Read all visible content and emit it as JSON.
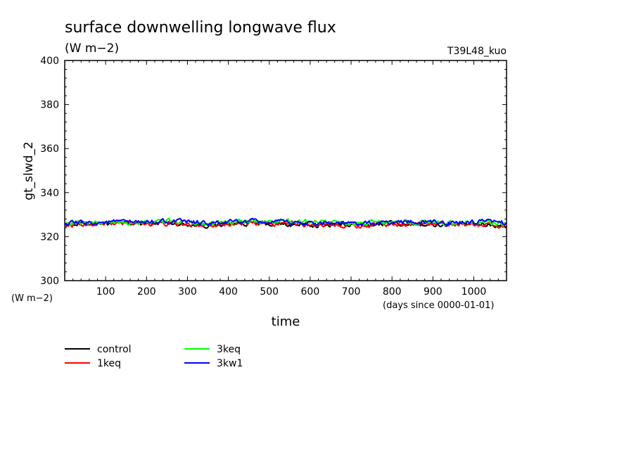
{
  "chart_data": {
    "type": "line",
    "title": "surface downwelling longwave flux",
    "subtitle": "(W m−2)",
    "run_label": "T39L48_kuo",
    "ylabel": "gt_slwd_2",
    "y_unit": "(W m−2)",
    "xlabel": "time",
    "x_unit": "(days since 0000-01-01)",
    "xlim": [
      0,
      1080
    ],
    "ylim": [
      300,
      400
    ],
    "x_ticks": [
      100,
      200,
      300,
      400,
      500,
      600,
      700,
      800,
      900,
      1000
    ],
    "y_ticks": [
      300,
      320,
      340,
      360,
      380,
      400
    ],
    "grid": false,
    "legend_position": "bottom-left",
    "series": [
      {
        "name": "control",
        "color": "#000000",
        "x": [
          0,
          60,
          120,
          180,
          240,
          300,
          360,
          420,
          480,
          540,
          600,
          660,
          720,
          780,
          840,
          900,
          960,
          1020,
          1080
        ],
        "y": [
          325.5,
          326.0,
          326.2,
          325.8,
          326.4,
          325.6,
          325.2,
          326.3,
          325.8,
          325.5,
          325.0,
          325.6,
          325.2,
          325.8,
          326.0,
          325.5,
          325.4,
          325.6,
          325.0
        ]
      },
      {
        "name": "1keq",
        "color": "#ff0000",
        "x": [
          0,
          60,
          120,
          180,
          240,
          300,
          360,
          420,
          480,
          540,
          600,
          660,
          720,
          780,
          840,
          900,
          960,
          1020,
          1080
        ],
        "y": [
          325.2,
          325.8,
          325.9,
          326.1,
          326.0,
          325.4,
          325.6,
          325.9,
          325.6,
          326.0,
          325.4,
          325.7,
          324.8,
          325.6,
          326.0,
          325.7,
          325.8,
          325.6,
          324.8
        ]
      },
      {
        "name": "3keq",
        "color": "#00ff00",
        "x": [
          0,
          60,
          120,
          180,
          240,
          300,
          360,
          420,
          480,
          540,
          600,
          660,
          720,
          780,
          840,
          900,
          960,
          1020,
          1080
        ],
        "y": [
          326.0,
          326.5,
          326.3,
          326.8,
          326.9,
          326.5,
          326.1,
          326.7,
          326.6,
          326.9,
          326.8,
          326.6,
          326.0,
          326.3,
          326.6,
          326.4,
          326.5,
          326.2,
          325.6
        ]
      },
      {
        "name": "3kw1",
        "color": "#0000ff",
        "x": [
          0,
          60,
          120,
          180,
          240,
          300,
          360,
          420,
          480,
          540,
          600,
          660,
          720,
          780,
          840,
          900,
          960,
          1020,
          1080
        ],
        "y": [
          325.8,
          326.4,
          326.6,
          326.5,
          327.0,
          326.6,
          326.0,
          326.8,
          326.6,
          326.4,
          326.2,
          326.3,
          325.6,
          326.2,
          326.8,
          326.4,
          326.3,
          326.6,
          326.1
        ]
      }
    ]
  }
}
